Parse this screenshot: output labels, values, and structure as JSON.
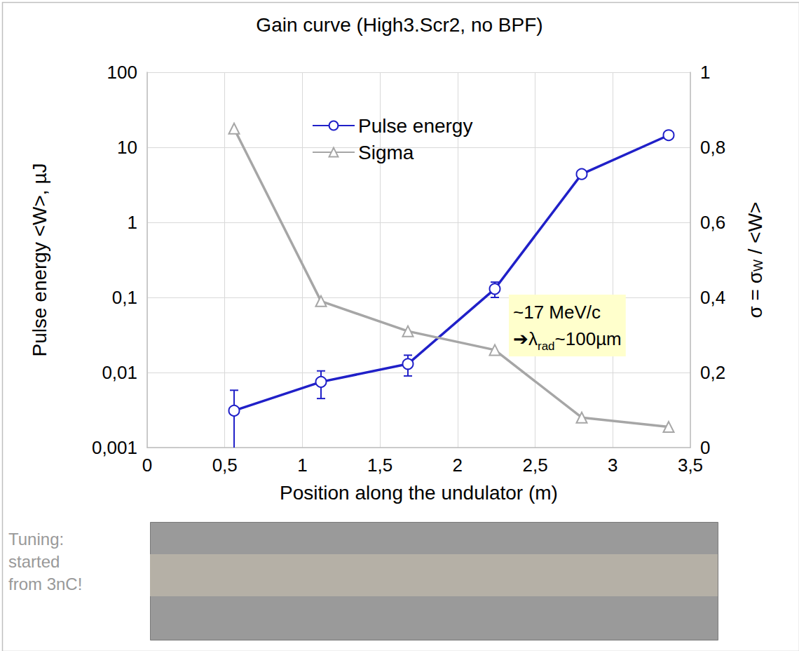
{
  "chart_data": {
    "type": "line",
    "title": "Gain curve (High3.Scr2, no BPF)",
    "x_label": "Position along the undulator (m)",
    "y_label": "Pulse energy <W>, µJ",
    "y2_label": [
      {
        "text": "σ = σ"
      },
      {
        "text": "W",
        "sub": true
      },
      {
        "text": " / <W>"
      }
    ],
    "annotation": [
      [
        {
          "text": "~17 MeV/c"
        }
      ],
      [
        {
          "text": "➔λ"
        },
        {
          "text": "rad",
          "sub": true
        },
        {
          "text": "~100µm"
        }
      ]
    ],
    "note": [
      "Tuning:",
      "started",
      "from 3nC!"
    ],
    "x": [
      0.56,
      1.12,
      1.68,
      2.24,
      2.8,
      3.36
    ],
    "series": [
      {
        "name": "Pulse energy",
        "color": "#2020c8",
        "marker": "circle",
        "axis": "y",
        "values": [
          0.0031,
          0.0075,
          0.013,
          0.13,
          4.4,
          14.5
        ],
        "errors": [
          0.0027,
          0.003,
          0.004,
          0.03,
          0.3,
          0.5
        ]
      },
      {
        "name": "Sigma",
        "color": "#a6a6a6",
        "marker": "triangle",
        "axis": "y2",
        "values": [
          0.85,
          0.39,
          0.31,
          0.26,
          0.08,
          0.055
        ]
      }
    ],
    "xlim": [
      0,
      3.5
    ],
    "xticks": [
      0,
      {
        "value": 0.5,
        "label": "0,5"
      },
      1,
      {
        "value": 1.5,
        "label": "1,5"
      },
      2,
      {
        "value": 2.5,
        "label": "2,5"
      },
      3,
      {
        "value": 3.5,
        "label": "3,5"
      }
    ],
    "ylim": [
      0.001,
      100
    ],
    "yticks": [
      {
        "value": 0.001,
        "label": "0,001"
      },
      {
        "value": 0.01,
        "label": "0,01"
      },
      {
        "value": 0.1,
        "label": "0,1"
      },
      1,
      10,
      100
    ],
    "y2lim": [
      0,
      1
    ],
    "y2ticks": [
      0,
      {
        "value": 0.2,
        "label": "0,2"
      },
      {
        "value": 0.4,
        "label": "0,4"
      },
      {
        "value": 0.6,
        "label": "0,6"
      },
      {
        "value": 0.8,
        "label": "0,8"
      },
      1
    ],
    "log": "y",
    "grid": true,
    "legend": "top"
  }
}
